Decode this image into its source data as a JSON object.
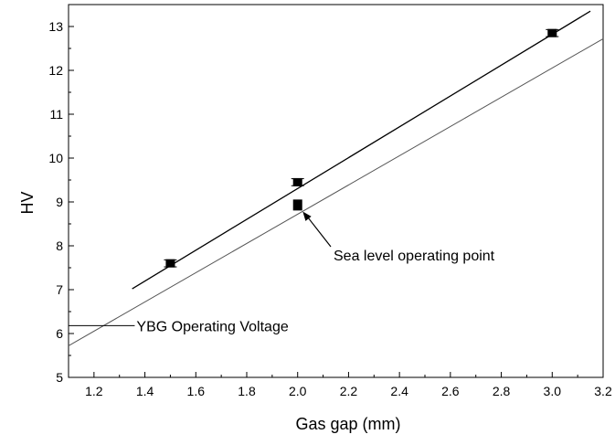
{
  "chart_data": {
    "type": "scatter",
    "title": "",
    "xlabel": "Gas gap (mm)",
    "ylabel": "HV",
    "xlim": [
      1.1,
      3.2
    ],
    "ylim": [
      5,
      13.5
    ],
    "x_ticks": [
      1.2,
      1.4,
      1.6,
      1.8,
      2.0,
      2.2,
      2.4,
      2.6,
      2.8,
      3.0,
      3.2
    ],
    "x_tick_labels": [
      "1.2",
      "1.4",
      "1.6",
      "1.8",
      "2.0",
      "2.2",
      "2.4",
      "2.6",
      "2.8",
      "3.0",
      "3.2"
    ],
    "y_ticks": [
      5,
      6,
      7,
      8,
      9,
      10,
      11,
      12,
      13
    ],
    "y_tick_labels": [
      "5",
      "6",
      "7",
      "8",
      "9",
      "10",
      "11",
      "12",
      "13"
    ],
    "grid": false,
    "series": [
      {
        "points": [
          {
            "x": 1.5,
            "y": 7.6,
            "err": 0.08
          },
          {
            "x": 2.0,
            "y": 9.45,
            "err": 0.08
          },
          {
            "x": 3.0,
            "y": 12.85,
            "err": 0.08
          }
        ],
        "fit_line": [
          [
            1.35,
            7.02
          ],
          [
            3.15,
            13.35
          ]
        ],
        "line_color": "#000000"
      },
      {
        "points": [
          {
            "x": 2.0,
            "y": 8.93
          }
        ],
        "fit_line": [
          [
            1.1,
            5.72
          ],
          [
            3.2,
            12.72
          ]
        ],
        "line_color": "#555555"
      }
    ],
    "reference_line": {
      "y": 6.18,
      "x_from": 1.1,
      "x_to": 1.36
    },
    "annotations": [
      {
        "text": "Sea level operating point",
        "arrow_to": [
          2.02,
          8.78
        ]
      },
      {
        "text": "YBG Operating Voltage"
      }
    ]
  }
}
